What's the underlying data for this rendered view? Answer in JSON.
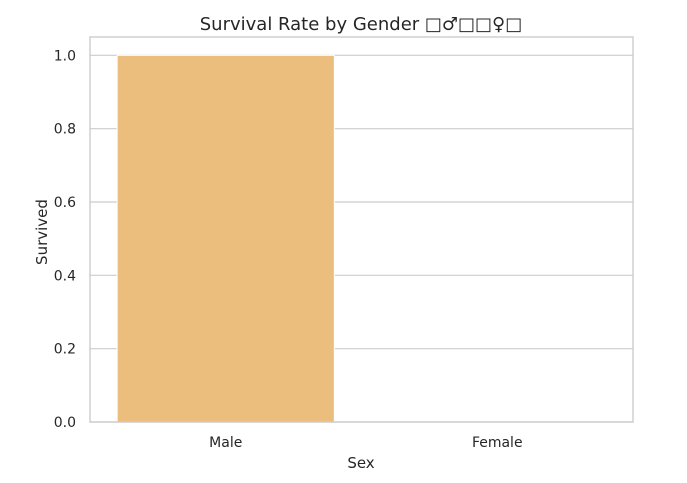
{
  "chart_data": {
    "type": "bar",
    "title": "Survival Rate by Gender □♂□□♀□",
    "xlabel": "Sex",
    "ylabel": "Survived",
    "categories": [
      "Male",
      "Female"
    ],
    "values": [
      1.0,
      0.0
    ],
    "ylim": [
      0,
      1.05
    ],
    "yticks": [
      0.0,
      0.2,
      0.4,
      0.6,
      0.8,
      1.0
    ],
    "ytick_labels": [
      "0.0",
      "0.2",
      "0.4",
      "0.6",
      "0.8",
      "1.0"
    ],
    "grid": true,
    "colors": [
      "#ecbe7e",
      "#f0b7c8"
    ]
  }
}
